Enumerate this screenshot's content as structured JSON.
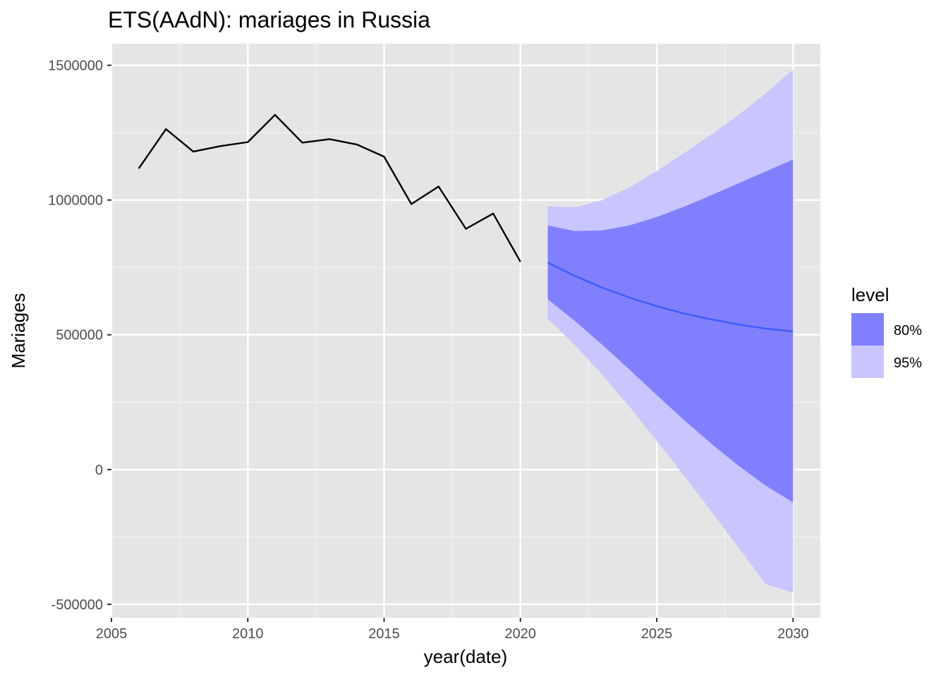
{
  "chart_data": {
    "type": "line",
    "title": "ETS(AAdN): mariages in Russia",
    "xlabel": "year(date)",
    "ylabel": "Mariages",
    "xlim": [
      2005,
      2031
    ],
    "ylim": [
      -550000,
      1580000
    ],
    "x_ticks": [
      2005,
      2010,
      2015,
      2020,
      2025,
      2030
    ],
    "x_tick_labels": [
      "2005",
      "2010",
      "2015",
      "2020",
      "2025",
      "2030"
    ],
    "y_ticks": [
      -500000,
      0,
      500000,
      1000000,
      1500000
    ],
    "y_tick_labels": [
      "-500000",
      "0",
      "500000",
      "1000000",
      "1500000"
    ],
    "grid": true,
    "legend": {
      "title": "level",
      "position": "right",
      "entries": [
        {
          "label": "80%",
          "color": "#8080ff"
        },
        {
          "label": "95%",
          "color": "#c8c5ff"
        }
      ]
    },
    "series": [
      {
        "role": "observed",
        "color": "#000000",
        "x": [
          2006,
          2007,
          2008,
          2009,
          2010,
          2011,
          2012,
          2013,
          2014,
          2015,
          2016,
          2017,
          2018,
          2019,
          2020
        ],
        "y": [
          1117000,
          1263000,
          1180000,
          1200000,
          1215000,
          1316000,
          1213000,
          1226000,
          1206000,
          1161000,
          985000,
          1050000,
          893000,
          950000,
          771000
        ]
      },
      {
        "role": "forecast",
        "color": "#3b5cff",
        "x": [
          2021,
          2022,
          2023,
          2024,
          2025,
          2026,
          2027,
          2028,
          2029,
          2030
        ],
        "y": [
          768000,
          718000,
          675000,
          638000,
          606000,
          579000,
          557000,
          538000,
          523000,
          512000
        ]
      }
    ],
    "bands": [
      {
        "level": "95%",
        "color": "#c8c5ff",
        "x": [
          2021,
          2022,
          2023,
          2024,
          2025,
          2026,
          2027,
          2028,
          2029,
          2030
        ],
        "upper": [
          977000,
          973000,
          1000000,
          1047000,
          1108000,
          1174000,
          1243000,
          1316000,
          1396000,
          1484000
        ],
        "lower": [
          560000,
          462000,
          352000,
          233000,
          106000,
          -22000,
          -155000,
          -290000,
          -425000,
          -457000
        ]
      },
      {
        "level": "80%",
        "color": "#8080ff",
        "x": [
          2021,
          2022,
          2023,
          2024,
          2025,
          2026,
          2027,
          2028,
          2029,
          2030
        ],
        "upper": [
          906000,
          885000,
          887000,
          906000,
          937000,
          975000,
          1018000,
          1062000,
          1106000,
          1150000
        ],
        "lower": [
          632000,
          551000,
          463000,
          371000,
          276000,
          184000,
          96000,
          14000,
          -60000,
          -122000
        ]
      }
    ],
    "background": "#e5e5e5"
  }
}
